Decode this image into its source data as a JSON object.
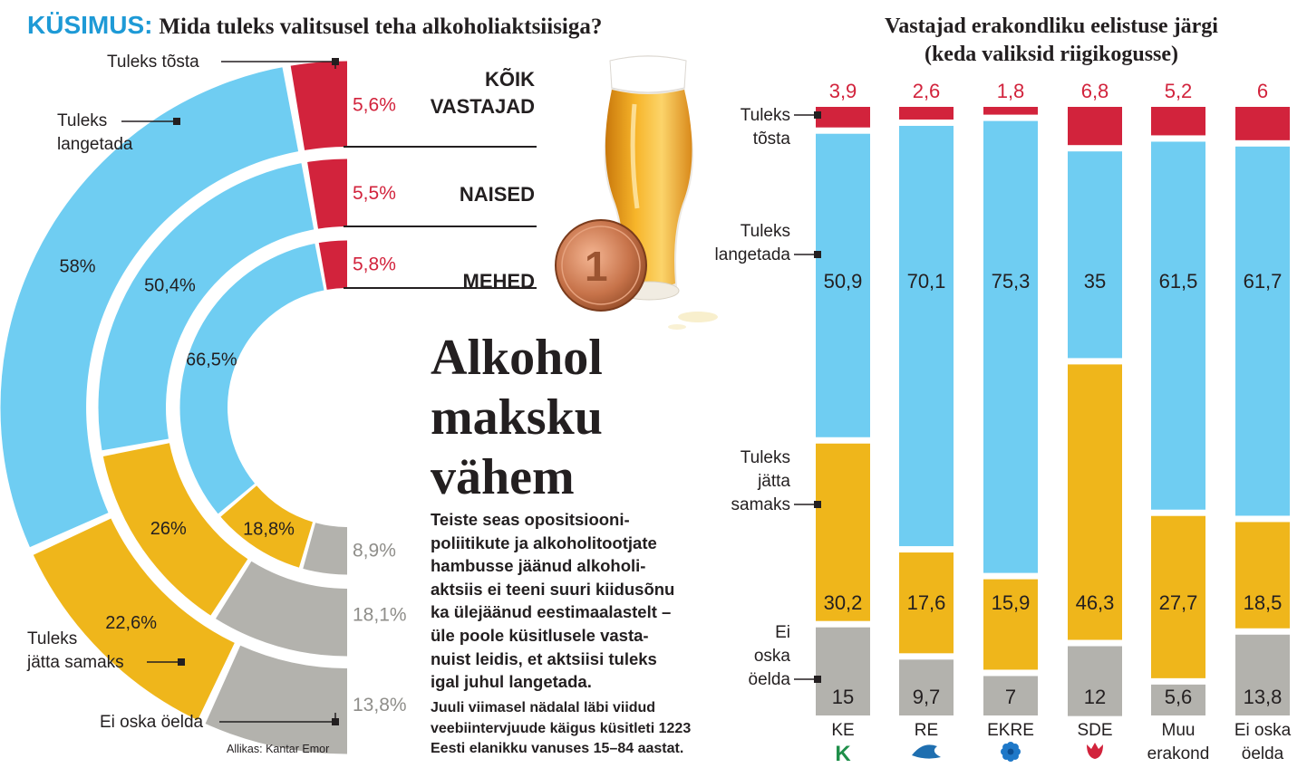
{
  "header": {
    "question_label": "KÜSIMUS:",
    "question_text": "Mida tuleks valitsusel teha alkoholiaktsiisiga?",
    "right_title_line1": "Vastajad erakondliku eelistuse järgi",
    "right_title_line2": "(keda valiksid riigikogusse)"
  },
  "article": {
    "title_lines": [
      "Alkohol",
      "maksku",
      "vähem"
    ],
    "body_lines": [
      "Teiste seas opositsiooni-",
      "poliitikute ja alkoholitootjate",
      "hambusse jäänud alkoholi-",
      "aktsiis ei teeni suuri kiidusõnu",
      "ka ülejäänud eestimaalastelt –",
      "üle poole küsitlusele vasta-",
      "nuist leidis, et aktsiisi tuleks",
      "igal juhul langetada."
    ],
    "method_lines": [
      "Juuli viimasel nädalal läbi viidud",
      "veebiintervjuude käigus küsitleti 1223",
      "Eesti elanikku vanuses 15–84 aastat."
    ],
    "source": "Allikas: Kantar Emor"
  },
  "colors": {
    "raise": "#d2233c",
    "lower": "#6fcdf2",
    "same": "#efb61b",
    "dont_know": "#b3b2ad",
    "accent_blue": "#1e9ad6"
  },
  "chart_data": [
    {
      "type": "pie",
      "subtype": "half-donut rings",
      "categories": [
        "Tuleks tõsta",
        "Tuleks langetada",
        "Tuleks jätta samaks",
        "Ei oska öelda"
      ],
      "category_labels": [
        [
          "Tuleks tõsta"
        ],
        [
          "Tuleks",
          "langetada"
        ],
        [
          "Tuleks",
          "jätta samaks"
        ],
        [
          "Ei oska öelda"
        ]
      ],
      "series": [
        {
          "name": "KÕIK VASTAJAD",
          "name_lines": [
            "KÕIK",
            "VASTAJAD"
          ],
          "values": [
            5.6,
            58,
            22.6,
            13.8
          ],
          "labels": [
            "5,6%",
            "58%",
            "22,6%",
            "13,8%"
          ]
        },
        {
          "name": "NAISED",
          "name_lines": [
            "NAISED"
          ],
          "values": [
            5.5,
            50.4,
            26,
            18.1
          ],
          "labels": [
            "5,5%",
            "50,4%",
            "26%",
            "18,1%"
          ]
        },
        {
          "name": "MEHED",
          "name_lines": [
            "MEHED"
          ],
          "values": [
            5.8,
            66.5,
            18.8,
            8.9
          ],
          "labels": [
            "5,8%",
            "66,5%",
            "18,8%",
            "8,9%"
          ]
        }
      ]
    },
    {
      "type": "bar",
      "subtype": "stacked-100",
      "categories": [
        "KE",
        "RE",
        "EKRE",
        "SDE",
        "Muu erakond",
        "Ei oska öelda"
      ],
      "category_labels": [
        [
          "KE"
        ],
        [
          "RE"
        ],
        [
          "EKRE"
        ],
        [
          "SDE"
        ],
        [
          "Muu",
          "erakond"
        ],
        [
          "Ei oska",
          "öelda"
        ]
      ],
      "category_icons": [
        "ke-logo-icon",
        "re-squirrel-logo-icon",
        "ekre-cornflower-logo-icon",
        "sde-rose-logo-icon",
        "",
        ""
      ],
      "segment_labels": [
        [
          "Tuleks",
          "tõsta"
        ],
        [
          "Tuleks",
          "langetada"
        ],
        [
          "Tuleks",
          "jätta",
          "samaks"
        ],
        [
          "Ei",
          "oska",
          "öelda"
        ]
      ],
      "series": [
        {
          "name": "Tuleks tõsta",
          "values": [
            3.9,
            2.6,
            1.8,
            6.8,
            5.2,
            6
          ],
          "labels": [
            "3,9",
            "2,6",
            "1,8",
            "6,8",
            "5,2",
            "6"
          ]
        },
        {
          "name": "Tuleks langetada",
          "values": [
            50.9,
            70.1,
            75.3,
            35,
            61.5,
            61.7
          ],
          "labels": [
            "50,9",
            "70,1",
            "75,3",
            "35",
            "61,5",
            "61,7"
          ]
        },
        {
          "name": "Tuleks jätta samaks",
          "values": [
            30.2,
            17.6,
            15.9,
            46.3,
            27.7,
            18.5
          ],
          "labels": [
            "30,2",
            "17,6",
            "15,9",
            "46,3",
            "27,7",
            "18,5"
          ]
        },
        {
          "name": "Ei oska öelda",
          "values": [
            15,
            9.7,
            7,
            12,
            5.6,
            13.8
          ],
          "labels": [
            "15",
            "9,7",
            "7",
            "12",
            "5,6",
            "13,8"
          ]
        }
      ],
      "ylim": [
        0,
        100
      ]
    }
  ]
}
